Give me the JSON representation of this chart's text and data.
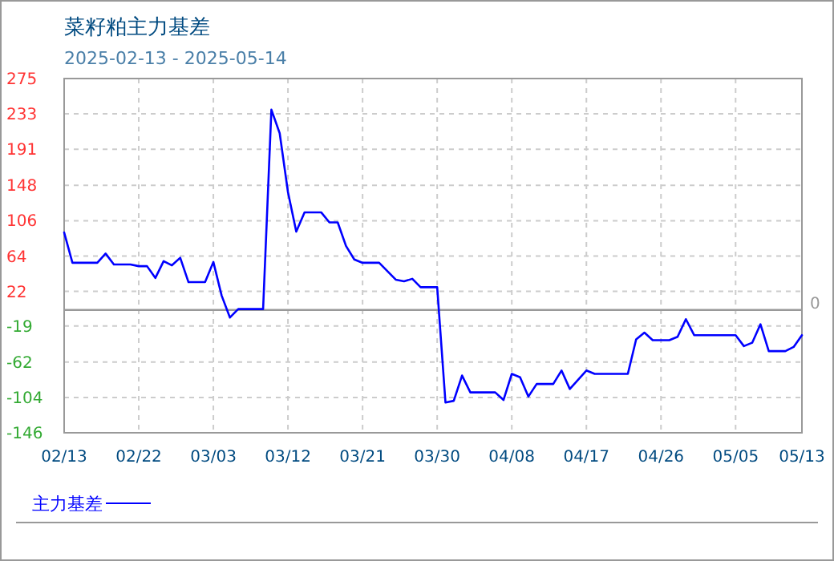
{
  "chart_data": {
    "type": "line",
    "title": "菜籽粕主力基差",
    "subtitle": "2025-02-13 - 2025-05-14",
    "xlim": [
      "2025-02-13",
      "2025-05-13"
    ],
    "xticks": [
      {
        "value": "2025-02-13",
        "label": "02/13"
      },
      {
        "value": "2025-02-22",
        "label": "02/22"
      },
      {
        "value": "2025-03-03",
        "label": "03/03"
      },
      {
        "value": "2025-03-12",
        "label": "03/12"
      },
      {
        "value": "2025-03-21",
        "label": "03/21"
      },
      {
        "value": "2025-03-30",
        "label": "03/30"
      },
      {
        "value": "2025-04-08",
        "label": "04/08"
      },
      {
        "value": "2025-04-17",
        "label": "04/17"
      },
      {
        "value": "2025-04-26",
        "label": "04/26"
      },
      {
        "value": "2025-05-05",
        "label": "05/05"
      },
      {
        "value": "2025-05-13",
        "label": "05/13"
      }
    ],
    "ylim": [
      -146,
      275
    ],
    "yticks": [
      275,
      233,
      191,
      148,
      106,
      64,
      22,
      -19,
      -62,
      -104,
      -146
    ],
    "grid": true,
    "legend": "bottom",
    "marker": "none",
    "line_style": "solid",
    "ref_lines": [
      {
        "axis": "y",
        "value": 0,
        "label": "0",
        "color": "#999999"
      }
    ],
    "x": [
      "2025-02-13",
      "2025-02-14",
      "2025-02-17",
      "2025-02-18",
      "2025-02-19",
      "2025-02-21",
      "2025-02-22",
      "2025-02-23",
      "2025-02-24",
      "2025-02-25",
      "2025-02-26",
      "2025-02-27",
      "2025-02-28",
      "2025-03-02",
      "2025-03-03",
      "2025-03-04",
      "2025-03-05",
      "2025-03-06",
      "2025-03-09",
      "2025-03-10",
      "2025-03-11",
      "2025-03-12",
      "2025-03-13",
      "2025-03-14",
      "2025-03-16",
      "2025-03-17",
      "2025-03-18",
      "2025-03-19",
      "2025-03-20",
      "2025-03-21",
      "2025-03-23",
      "2025-03-25",
      "2025-03-26",
      "2025-03-27",
      "2025-03-28",
      "2025-03-30",
      "2025-03-31",
      "2025-04-01",
      "2025-04-02",
      "2025-04-03",
      "2025-04-06",
      "2025-04-07",
      "2025-04-08",
      "2025-04-09",
      "2025-04-10",
      "2025-04-11",
      "2025-04-13",
      "2025-04-14",
      "2025-04-15",
      "2025-04-17",
      "2025-04-18",
      "2025-04-22",
      "2025-04-23",
      "2025-04-24",
      "2025-04-25",
      "2025-04-27",
      "2025-04-28",
      "2025-04-29",
      "2025-04-30",
      "2025-05-05",
      "2025-05-06",
      "2025-05-07",
      "2025-05-08",
      "2025-05-09",
      "2025-05-11",
      "2025-05-12",
      "2025-05-13"
    ],
    "series": [
      {
        "name": "主力基差",
        "color": "#0000ff",
        "values": [
          92,
          56,
          56,
          67,
          54,
          54,
          52,
          52,
          38,
          58,
          53,
          62,
          33,
          33,
          57,
          17,
          -9,
          1,
          1,
          238,
          210,
          140,
          93,
          116,
          116,
          104,
          104,
          76,
          60,
          56,
          56,
          36,
          34,
          37,
          27,
          27,
          -110,
          -108,
          -78,
          -98,
          -98,
          -107,
          -76,
          -80,
          -103,
          -88,
          -88,
          -72,
          -94,
          -72,
          -76,
          -76,
          -35,
          -27,
          -36,
          -36,
          -32,
          -11,
          -30,
          -30,
          -43,
          -39,
          -17,
          -49,
          -49,
          -44,
          -30
        ]
      }
    ]
  }
}
